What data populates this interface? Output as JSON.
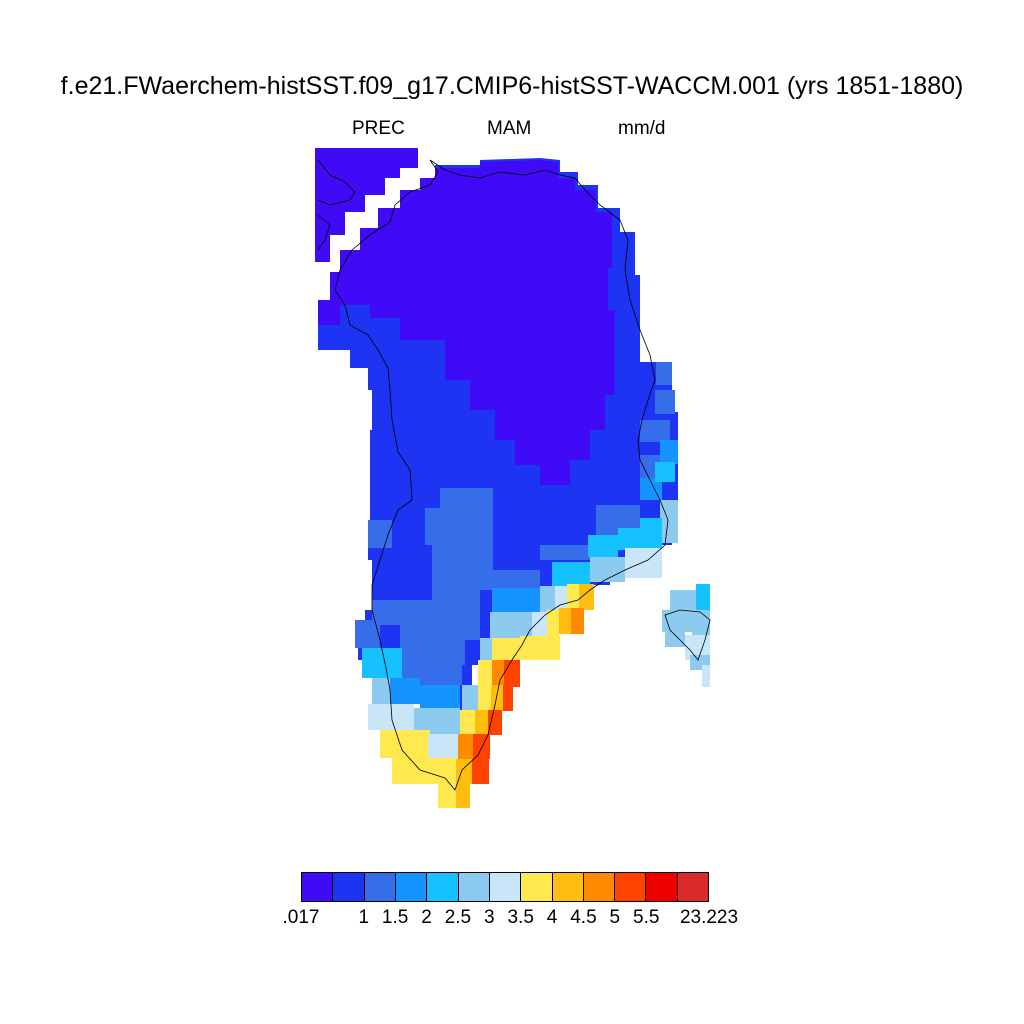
{
  "title": "f.e21.FWaerchem-histSST.f09_g17.CMIP6-histSST-WACCM.001 (yrs 1851-1880)",
  "subtitle": {
    "variable": "PREC",
    "season": "MAM",
    "units": "mm/d"
  },
  "colorbar": {
    "colors": [
      "#3f0af5",
      "#1d35f2",
      "#356ee8",
      "#1593ff",
      "#15c1ff",
      "#8ccaf0",
      "#c8e6f8",
      "#ffe94f",
      "#ffbe0f",
      "#ff8a00",
      "#ff4200",
      "#ee0000",
      "#d82a2a"
    ],
    "labels": [
      ".017",
      "1",
      "1.5",
      "2",
      "2.5",
      "3",
      "3.5",
      "4",
      "4.5",
      "5",
      "5.5",
      "23.223"
    ]
  },
  "chart_data": {
    "type": "heatmap",
    "title": "f.e21.FWaerchem-histSST.f09_g17.CMIP6-histSST-WACCM.001 (yrs 1851-1880)",
    "variable": "PREC",
    "season": "MAM",
    "units": "mm/d",
    "levels": [
      0.017,
      1,
      1.5,
      2,
      2.5,
      3,
      3.5,
      4,
      4.5,
      5,
      5.5,
      23.223
    ],
    "min": 0.017,
    "max": 23.223
  }
}
